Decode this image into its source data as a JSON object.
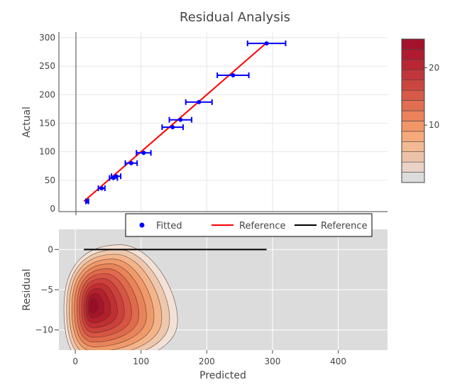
{
  "chart_data": {
    "type": "scatter",
    "title": "Residual Analysis",
    "top_panel": {
      "ylabel": "Actual",
      "ylim": [
        -5,
        310
      ],
      "yticks": [
        0,
        50,
        100,
        150,
        200,
        250,
        300
      ],
      "fitted": {
        "name": "Fitted",
        "color": "#0000ff",
        "x": [
          18,
          40,
          58,
          62,
          85,
          104,
          148,
          160,
          188,
          240,
          291
        ],
        "y": [
          13,
          36,
          54,
          57,
          80,
          98,
          143,
          156,
          187,
          234,
          290
        ],
        "x_error": [
          2,
          5,
          6,
          7,
          9,
          11,
          16,
          17,
          20,
          24,
          29
        ]
      },
      "reference": {
        "name": "Reference",
        "color": "#ff0000",
        "x": [
          13,
          291
        ],
        "y": [
          13,
          291
        ]
      }
    },
    "bottom_panel": {
      "ylabel": "Residual",
      "xlabel": "Predicted",
      "ylim": [
        -12.5,
        2.5
      ],
      "yticks": [
        0,
        -5,
        -10
      ],
      "reference": {
        "name": "Reference",
        "color": "#000000",
        "x": [
          13,
          291
        ],
        "y": [
          0,
          0
        ]
      },
      "density_peak": {
        "x": 25,
        "y": -7
      }
    },
    "shared_x": {
      "xlim": [
        -25,
        475
      ],
      "xticks": [
        0,
        100,
        200,
        300,
        400
      ]
    },
    "colorbar": {
      "ticks": [
        10,
        20
      ],
      "range": [
        0,
        25
      ]
    },
    "legend": [
      "Fitted",
      "Reference",
      "Reference"
    ],
    "colors": {
      "fitted": "#0000ff",
      "reference_red": "#ff0000",
      "reference_black": "#000000",
      "density_bg": "#dcdcdc"
    }
  }
}
